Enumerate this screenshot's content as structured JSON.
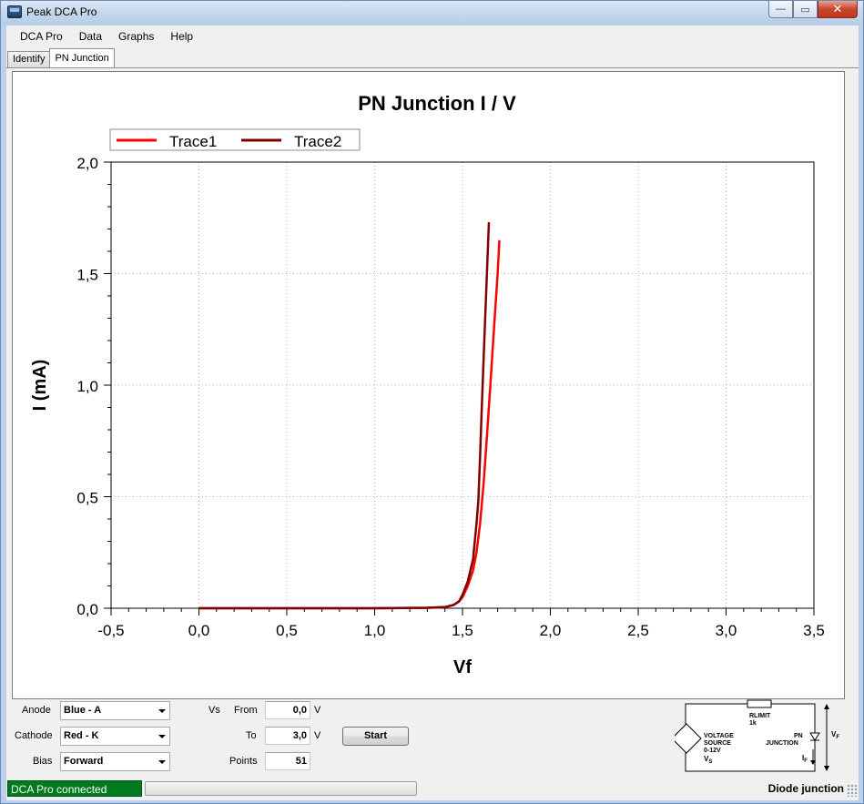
{
  "window": {
    "title": "Peak DCA Pro",
    "controls": [
      "—",
      "▭",
      "✕"
    ]
  },
  "menu": [
    "DCA Pro",
    "Data",
    "Graphs",
    "Help"
  ],
  "tabs": [
    {
      "label": "Identify",
      "active": false
    },
    {
      "label": "PN Junction",
      "active": true
    }
  ],
  "chart_data": {
    "type": "line",
    "title": "PN Junction I / V",
    "xlabel": "Vf",
    "ylabel": "I (mA)",
    "xlim": [
      -0.5,
      3.5
    ],
    "ylim": [
      0,
      2.0
    ],
    "x_ticks": [
      "-0,5",
      "0,0",
      "0,5",
      "1,0",
      "1,5",
      "2,0",
      "2,5",
      "3,0",
      "3,5"
    ],
    "y_ticks": [
      "0,0",
      "0,5",
      "1,0",
      "1,5",
      "2,0"
    ],
    "grid": true,
    "legend": "top-left",
    "series": [
      {
        "name": "Trace1",
        "color": "#ff0000",
        "x": [
          0.0,
          0.5,
          1.0,
          1.3,
          1.4,
          1.45,
          1.48,
          1.5,
          1.53,
          1.56,
          1.58,
          1.6,
          1.62,
          1.64,
          1.66,
          1.68,
          1.7,
          1.71
        ],
        "y": [
          0.0,
          0.0,
          0.0,
          0.002,
          0.005,
          0.015,
          0.03,
          0.05,
          0.1,
          0.17,
          0.25,
          0.38,
          0.56,
          0.78,
          1.02,
          1.26,
          1.5,
          1.65
        ]
      },
      {
        "name": "Trace2",
        "color": "#800000",
        "x": [
          0.0,
          0.5,
          1.0,
          1.3,
          1.4,
          1.45,
          1.48,
          1.5,
          1.53,
          1.56,
          1.58,
          1.59,
          1.6,
          1.61,
          1.62,
          1.63,
          1.64,
          1.65
        ],
        "y": [
          0.0,
          0.0,
          0.0,
          0.002,
          0.005,
          0.015,
          0.03,
          0.06,
          0.12,
          0.22,
          0.38,
          0.48,
          0.68,
          0.9,
          1.12,
          1.32,
          1.52,
          1.73
        ]
      }
    ]
  },
  "controls": {
    "anode_label": "Anode",
    "anode_value": "Blue - A",
    "cathode_label": "Cathode",
    "cathode_value": "Red - K",
    "bias_label": "Bias",
    "bias_value": "Forward",
    "vs_label": "Vs",
    "from_label": "From",
    "from_value": "0,0",
    "from_unit": "V",
    "to_label": "To",
    "to_value": "3,0",
    "to_unit": "V",
    "points_label": "Points",
    "points_value": "51",
    "start_label": "Start"
  },
  "schematic": {
    "rlimit": "RLIMIT",
    "rlimit_value": "1k",
    "source_line1": "VOLTAGE",
    "source_line2": "SOURCE",
    "source_line3": "0-12V",
    "vs": "V",
    "vs_sub": "S",
    "pn_line1": "PN",
    "pn_line2": "JUNCTION",
    "if": "I",
    "if_sub": "F",
    "vf": "V",
    "vf_sub": "F"
  },
  "status": {
    "connection": "DCA Pro connected",
    "connection_color": "#007a1e",
    "mode": "Diode junction"
  }
}
